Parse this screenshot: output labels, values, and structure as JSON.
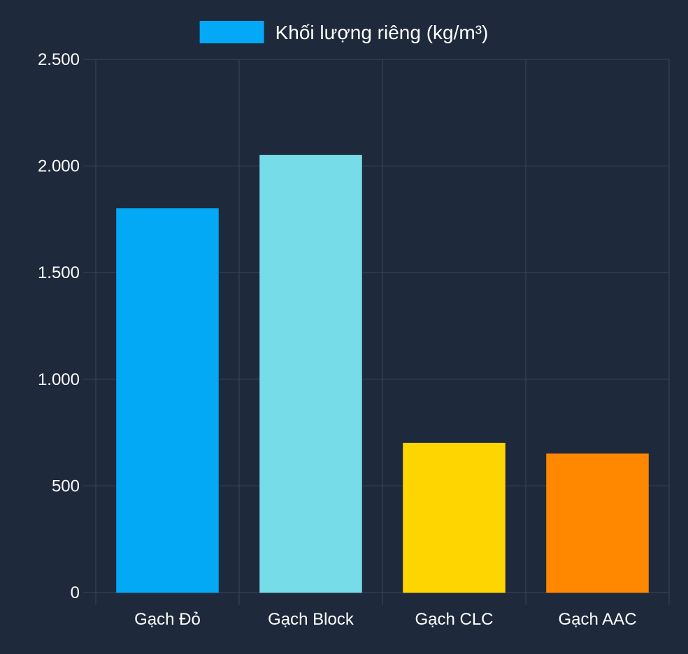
{
  "chart_data": {
    "type": "bar",
    "categories": [
      "Gạch Đỏ",
      "Gạch Block",
      "Gạch CLC",
      "Gạch AAC"
    ],
    "series": [
      {
        "name": "Khối lượng riêng (kg/m³)",
        "values": [
          1800,
          2050,
          700,
          650
        ]
      }
    ],
    "bar_colors": [
      "#03a9f4",
      "#76dce8",
      "#ffd500",
      "#ff8800"
    ],
    "legend_color": "#03a9f4",
    "ylim": [
      0,
      2500
    ],
    "yticks": [
      0,
      500,
      1000,
      1500,
      2000,
      2500
    ],
    "ytick_labels": [
      "0",
      "500",
      "1.000",
      "1.500",
      "2.000",
      "2.500"
    ],
    "grid": true,
    "legend_position": "top-center",
    "background": "#1e293b"
  }
}
